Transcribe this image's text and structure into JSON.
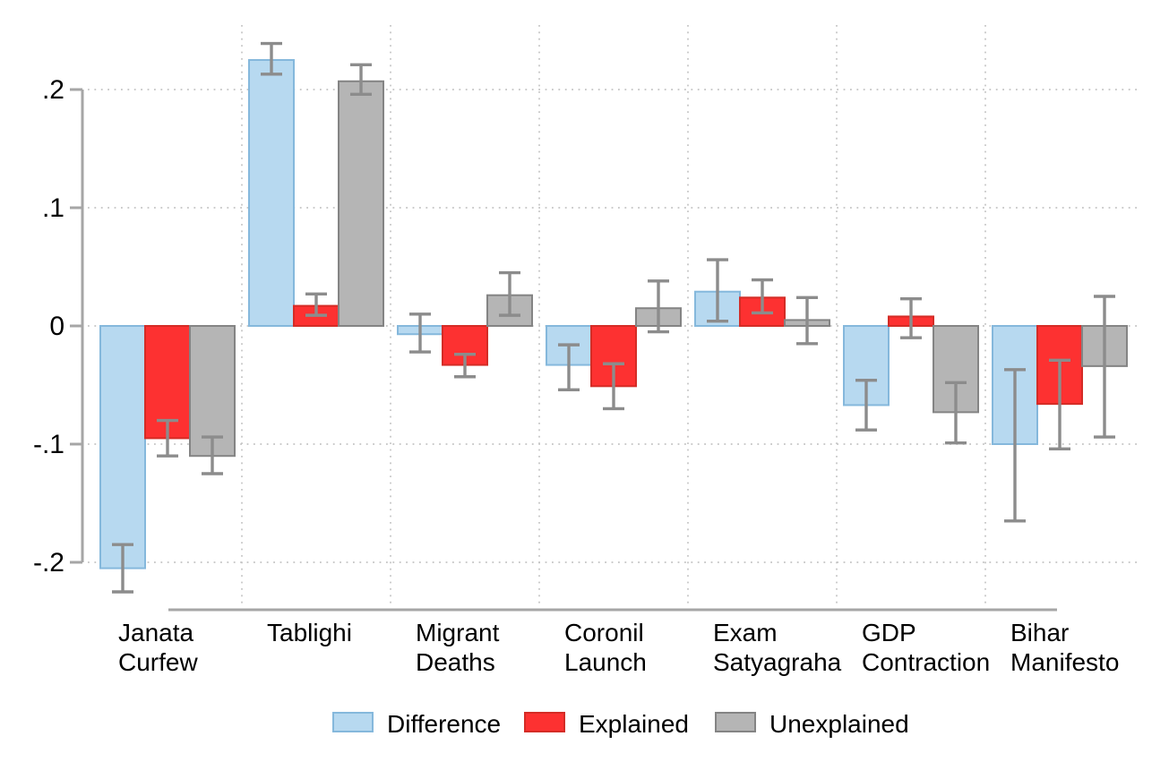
{
  "figure": {
    "background": "#FFFFFF",
    "text_color": "#000000"
  },
  "chart_data": {
    "type": "bar",
    "title": "",
    "xlabel": "",
    "ylabel": "",
    "ylim": [
      -0.24,
      0.255
    ],
    "grid": true,
    "legend_position": "bottom",
    "yticks": [
      0.2,
      0.1,
      0,
      -0.1,
      -0.2
    ],
    "ytick_labels": [
      ".2",
      ".1",
      "0",
      "-.1",
      "-.2"
    ],
    "categories": [
      "Janata Curfew",
      "Tablighi",
      "Migrant Deaths",
      "Coronil Launch",
      "Exam Satyagraha",
      "GDP Contraction",
      "Bihar Manifesto"
    ],
    "category_label_lines": [
      [
        "Janata",
        "Curfew"
      ],
      [
        "Tablighi"
      ],
      [
        "Migrant",
        "Deaths"
      ],
      [
        "Coronil",
        "Launch"
      ],
      [
        "Exam",
        "Satyagraha"
      ],
      [
        "GDP",
        "Contraction"
      ],
      [
        "Bihar",
        "Manifesto"
      ]
    ],
    "series": [
      {
        "name": "Difference",
        "fill": "#B7D9F0",
        "stroke": "#85B8DC",
        "values": [
          -0.205,
          0.225,
          -0.007,
          -0.033,
          0.029,
          -0.067,
          -0.1
        ],
        "ci_low": [
          -0.225,
          0.213,
          -0.022,
          -0.054,
          0.004,
          -0.088,
          -0.165
        ],
        "ci_high": [
          -0.185,
          0.239,
          0.01,
          -0.016,
          0.056,
          -0.046,
          -0.037
        ]
      },
      {
        "name": "Explained",
        "fill": "#FD3131",
        "stroke": "#D42C26",
        "values": [
          -0.095,
          0.017,
          -0.033,
          -0.051,
          0.024,
          0.008,
          -0.066
        ],
        "ci_low": [
          -0.11,
          0.009,
          -0.043,
          -0.07,
          0.011,
          -0.01,
          -0.104
        ],
        "ci_high": [
          -0.08,
          0.027,
          -0.024,
          -0.032,
          0.039,
          0.023,
          -0.029
        ]
      },
      {
        "name": "Unexplained",
        "fill": "#B5B5B5",
        "stroke": "#848484",
        "values": [
          -0.11,
          0.207,
          0.026,
          0.015,
          0.005,
          -0.073,
          -0.034
        ],
        "ci_low": [
          -0.125,
          0.196,
          0.009,
          -0.005,
          -0.015,
          -0.099,
          -0.094
        ],
        "ci_high": [
          -0.094,
          0.221,
          0.045,
          0.038,
          0.024,
          -0.048,
          0.025
        ]
      }
    ],
    "legend": [
      "Difference",
      "Explained",
      "Unexplained"
    ],
    "error_bar_color": "#8C8C8C",
    "axis_color": "#A6A6A6",
    "grid_color": "#C4C4C4"
  }
}
